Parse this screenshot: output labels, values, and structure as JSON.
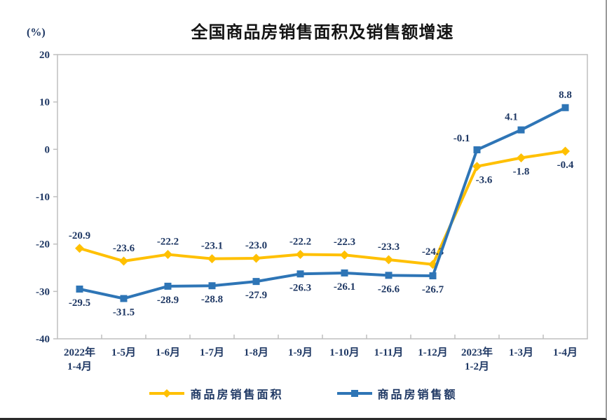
{
  "header": {
    "title": "全国商品房销售面积及销售额增速",
    "unit_label": "(%)"
  },
  "chart_data": {
    "type": "line",
    "title": "全国商品房销售面积及销售额增速",
    "unit_label": "(%)",
    "categories": [
      [
        "2022年",
        "1-4月"
      ],
      [
        "1-5月"
      ],
      [
        "1-6月"
      ],
      [
        "1-7月"
      ],
      [
        "1-8月"
      ],
      [
        "1-9月"
      ],
      [
        "1-10月"
      ],
      [
        "1-11月"
      ],
      [
        "1-12月"
      ],
      [
        "2023年",
        "1-2月"
      ],
      [
        "1-3月"
      ],
      [
        "1-4月"
      ]
    ],
    "ylim": [
      -40,
      20
    ],
    "yticks": [
      20,
      10,
      0,
      -10,
      -20,
      -30,
      -40
    ],
    "grid": false,
    "legend_position": "bottom",
    "text_color": "#1F3864",
    "axis_color": "#BFBFBF",
    "series": [
      {
        "name": "商品房销售面积",
        "color": "#FFC000",
        "marker": "diamond",
        "values": [
          -20.9,
          -23.6,
          -22.2,
          -23.1,
          -23.0,
          -22.2,
          -22.3,
          -23.3,
          -24.3,
          -3.6,
          -1.8,
          -0.4
        ],
        "labels": [
          "-20.9",
          "-23.6",
          "-22.2",
          "-23.1",
          "-23.0",
          "-22.2",
          "-22.3",
          "-23.3",
          "-24.3",
          "-3.6",
          "-1.8",
          "-0.4"
        ],
        "label_pos": [
          "above",
          "above",
          "above",
          "above",
          "above",
          "above",
          "above",
          "above",
          "above",
          "below-right",
          "below",
          "below"
        ]
      },
      {
        "name": "商品房销售额",
        "color": "#2E75B6",
        "marker": "square",
        "values": [
          -29.5,
          -31.5,
          -28.9,
          -28.8,
          -27.9,
          -26.3,
          -26.1,
          -26.6,
          -26.7,
          -0.1,
          4.1,
          8.8
        ],
        "labels": [
          "-29.5",
          "-31.5",
          "-28.9",
          "-28.8",
          "-27.9",
          "-26.3",
          "-26.1",
          "-26.6",
          "-26.7",
          "-0.1",
          "4.1",
          "8.8"
        ],
        "label_pos": [
          "below",
          "below",
          "below",
          "below",
          "below",
          "below",
          "below",
          "below",
          "below",
          "left-above",
          "above-left",
          "above"
        ]
      }
    ]
  }
}
